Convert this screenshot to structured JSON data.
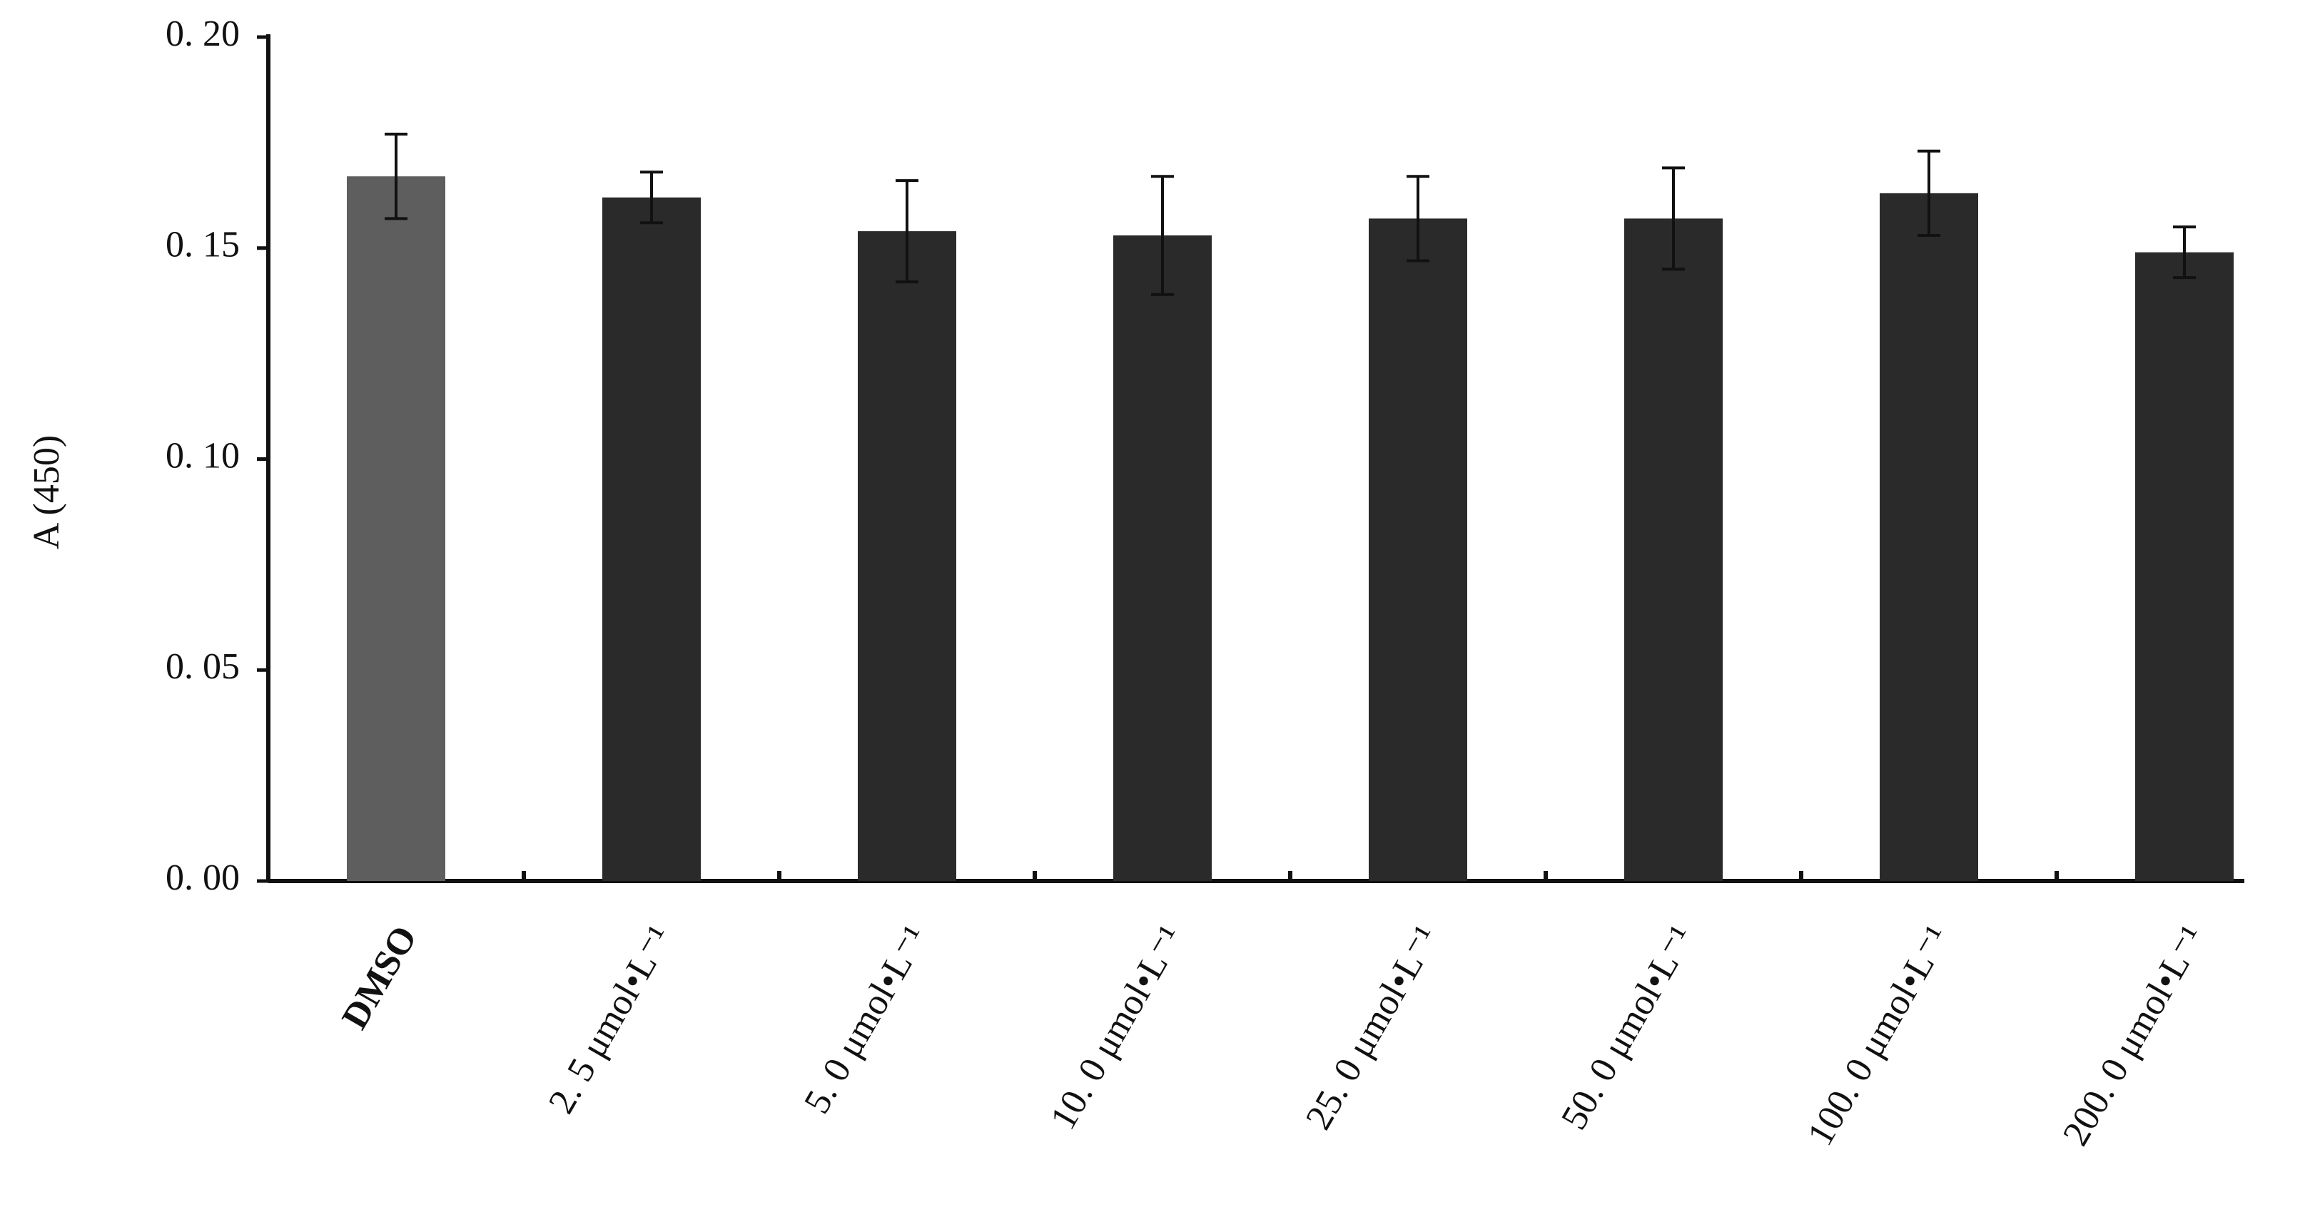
{
  "chart_data": {
    "type": "bar",
    "y_label": "A (450)",
    "categories": [
      "DMSO",
      "2. 5 μmol•L⁻¹",
      "5. 0 μmol•L⁻¹",
      "10. 0 μmol•L⁻¹",
      "25. 0 μmol•L⁻¹",
      "50. 0 μmol•L⁻¹",
      "100. 0 μmol•L⁻¹",
      "200. 0 μmol•L⁻¹"
    ],
    "values": [
      0.167,
      0.162,
      0.154,
      0.153,
      0.157,
      0.157,
      0.163,
      0.149
    ],
    "errors": [
      0.01,
      0.006,
      0.012,
      0.014,
      0.01,
      0.012,
      0.01,
      0.006
    ],
    "colors": [
      "#5e5e5e",
      "#2a2a2a",
      "#2a2a2a",
      "#2a2a2a",
      "#2a2a2a",
      "#2a2a2a",
      "#2a2a2a",
      "#2a2a2a"
    ],
    "ylim": [
      0,
      0.2
    ],
    "yticks": [
      {
        "value": 0,
        "label": "0. 00"
      },
      {
        "value": 0.05,
        "label": "0. 05"
      },
      {
        "value": 0.1,
        "label": "0. 10"
      },
      {
        "value": 0.15,
        "label": "0. 15"
      },
      {
        "value": 0.2,
        "label": "0. 20"
      }
    ],
    "grid": false
  }
}
